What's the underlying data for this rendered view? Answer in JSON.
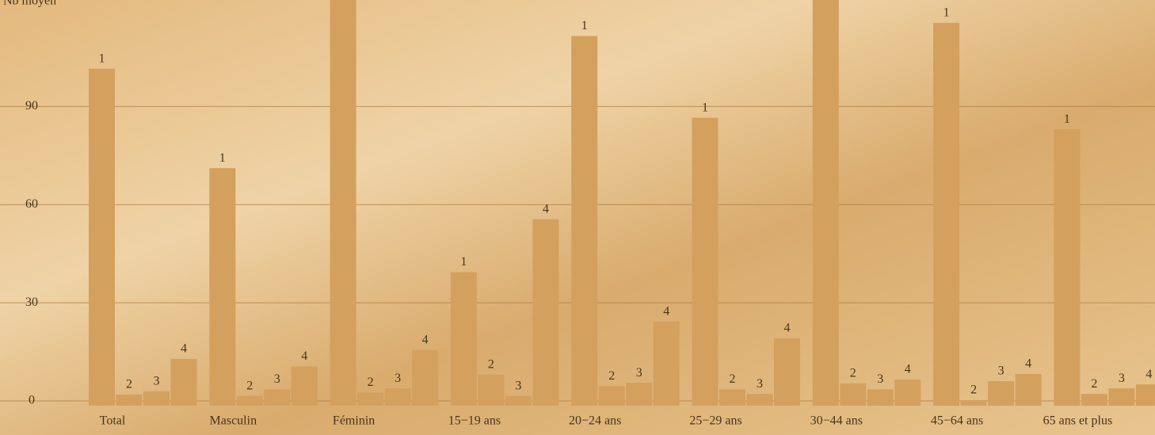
{
  "chart_data": {
    "type": "bar",
    "y_label": "Nb moyen",
    "categories": [
      "Total",
      "Masculin",
      "Féminin",
      "15−19 ans",
      "20−24 ans",
      "25−29 ans",
      "30−44 ans",
      "45−64 ans",
      "65 ans et plus"
    ],
    "series": [
      {
        "name": "1",
        "color": "#d4a05e",
        "values": [
          103,
          72.6,
          130,
          40.8,
          113,
          88,
          130,
          117,
          84.5
        ]
      },
      {
        "name": "2",
        "color": "#d4a05e",
        "values": [
          3.4,
          3,
          4,
          9.5,
          6,
          5,
          6.8,
          1.7,
          3.6
        ]
      },
      {
        "name": "3",
        "color": "#d4a05e",
        "values": [
          4.4,
          5,
          5.3,
          3,
          7,
          3.6,
          5,
          7.5,
          5.3
        ]
      },
      {
        "name": "4",
        "color": "#d4a05e",
        "values": [
          14.3,
          12,
          17,
          57,
          25.7,
          20.6,
          8,
          9.7,
          6.5
        ]
      }
    ],
    "ylim": [
      0,
      124
    ],
    "yticks": [
      0,
      30,
      60,
      90
    ],
    "grid": true
  }
}
